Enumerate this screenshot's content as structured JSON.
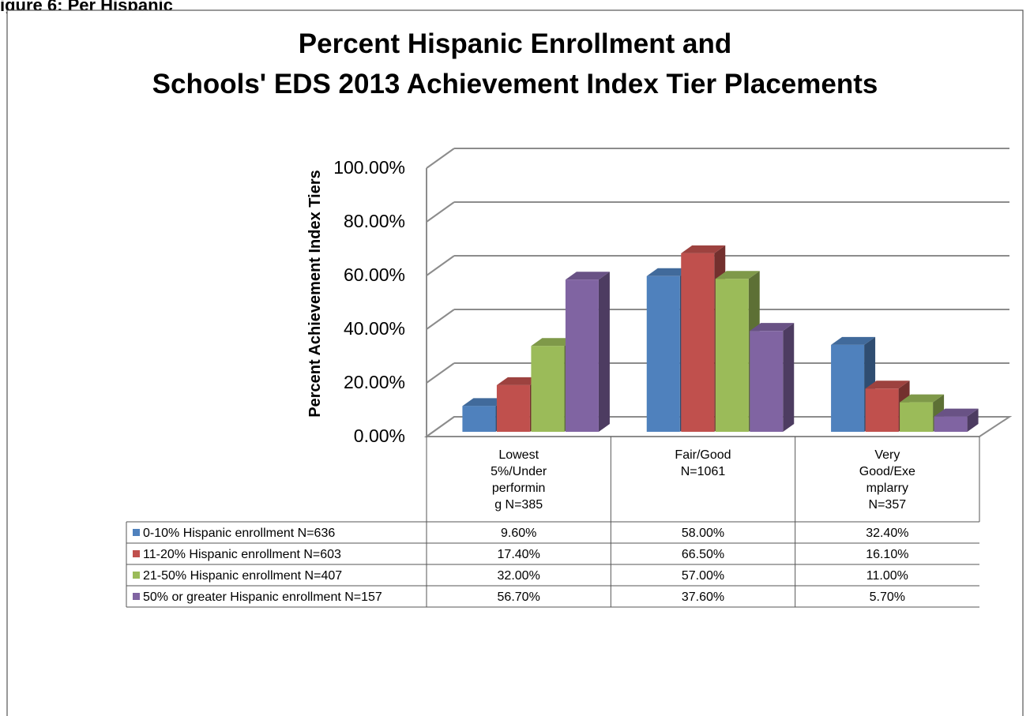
{
  "figure_caption": "igure 6: Per Hispanic",
  "chart_data": {
    "type": "bar",
    "subtype": "clustered-3d-with-data-table",
    "title_lines": [
      "Percent Hispanic Enrollment and",
      "Schools' EDS 2013 Achievement Index Tier Placements"
    ],
    "ylabel": "Percent Achievement Index Tiers",
    "xlabel": "",
    "ylim": [
      0,
      100
    ],
    "yticks": [
      "0.00%",
      "20.00%",
      "40.00%",
      "60.00%",
      "80.00%",
      "100.00%"
    ],
    "grid": true,
    "legend_placement": "data-table-left",
    "categories": [
      [
        "Lowest",
        "5%/Under",
        "performin",
        "g N=385"
      ],
      [
        "Fair/Good",
        "N=1061"
      ],
      [
        "Very",
        "Good/Exe",
        "mplarry",
        "N=357"
      ]
    ],
    "series": [
      {
        "name": "0-10% Hispanic enrollment N=636",
        "color": "#4f81bd",
        "values": [
          9.6,
          58.0,
          32.4
        ],
        "labels": [
          "9.60%",
          "58.00%",
          "32.40%"
        ]
      },
      {
        "name": "11-20% Hispanic enrollment N=603",
        "color": "#c0504d",
        "values": [
          17.4,
          66.5,
          16.1
        ],
        "labels": [
          "17.40%",
          "66.50%",
          "16.10%"
        ]
      },
      {
        "name": "21-50% Hispanic enrollment N=407",
        "color": "#9bbb59",
        "values": [
          32.0,
          57.0,
          11.0
        ],
        "labels": [
          "32.00%",
          "57.00%",
          "11.00%"
        ]
      },
      {
        "name": "50% or greater Hispanic enrollment N=157",
        "color": "#8064a2",
        "values": [
          56.7,
          37.6,
          5.7
        ],
        "labels": [
          "56.70%",
          "37.60%",
          "5.70%"
        ]
      }
    ]
  }
}
